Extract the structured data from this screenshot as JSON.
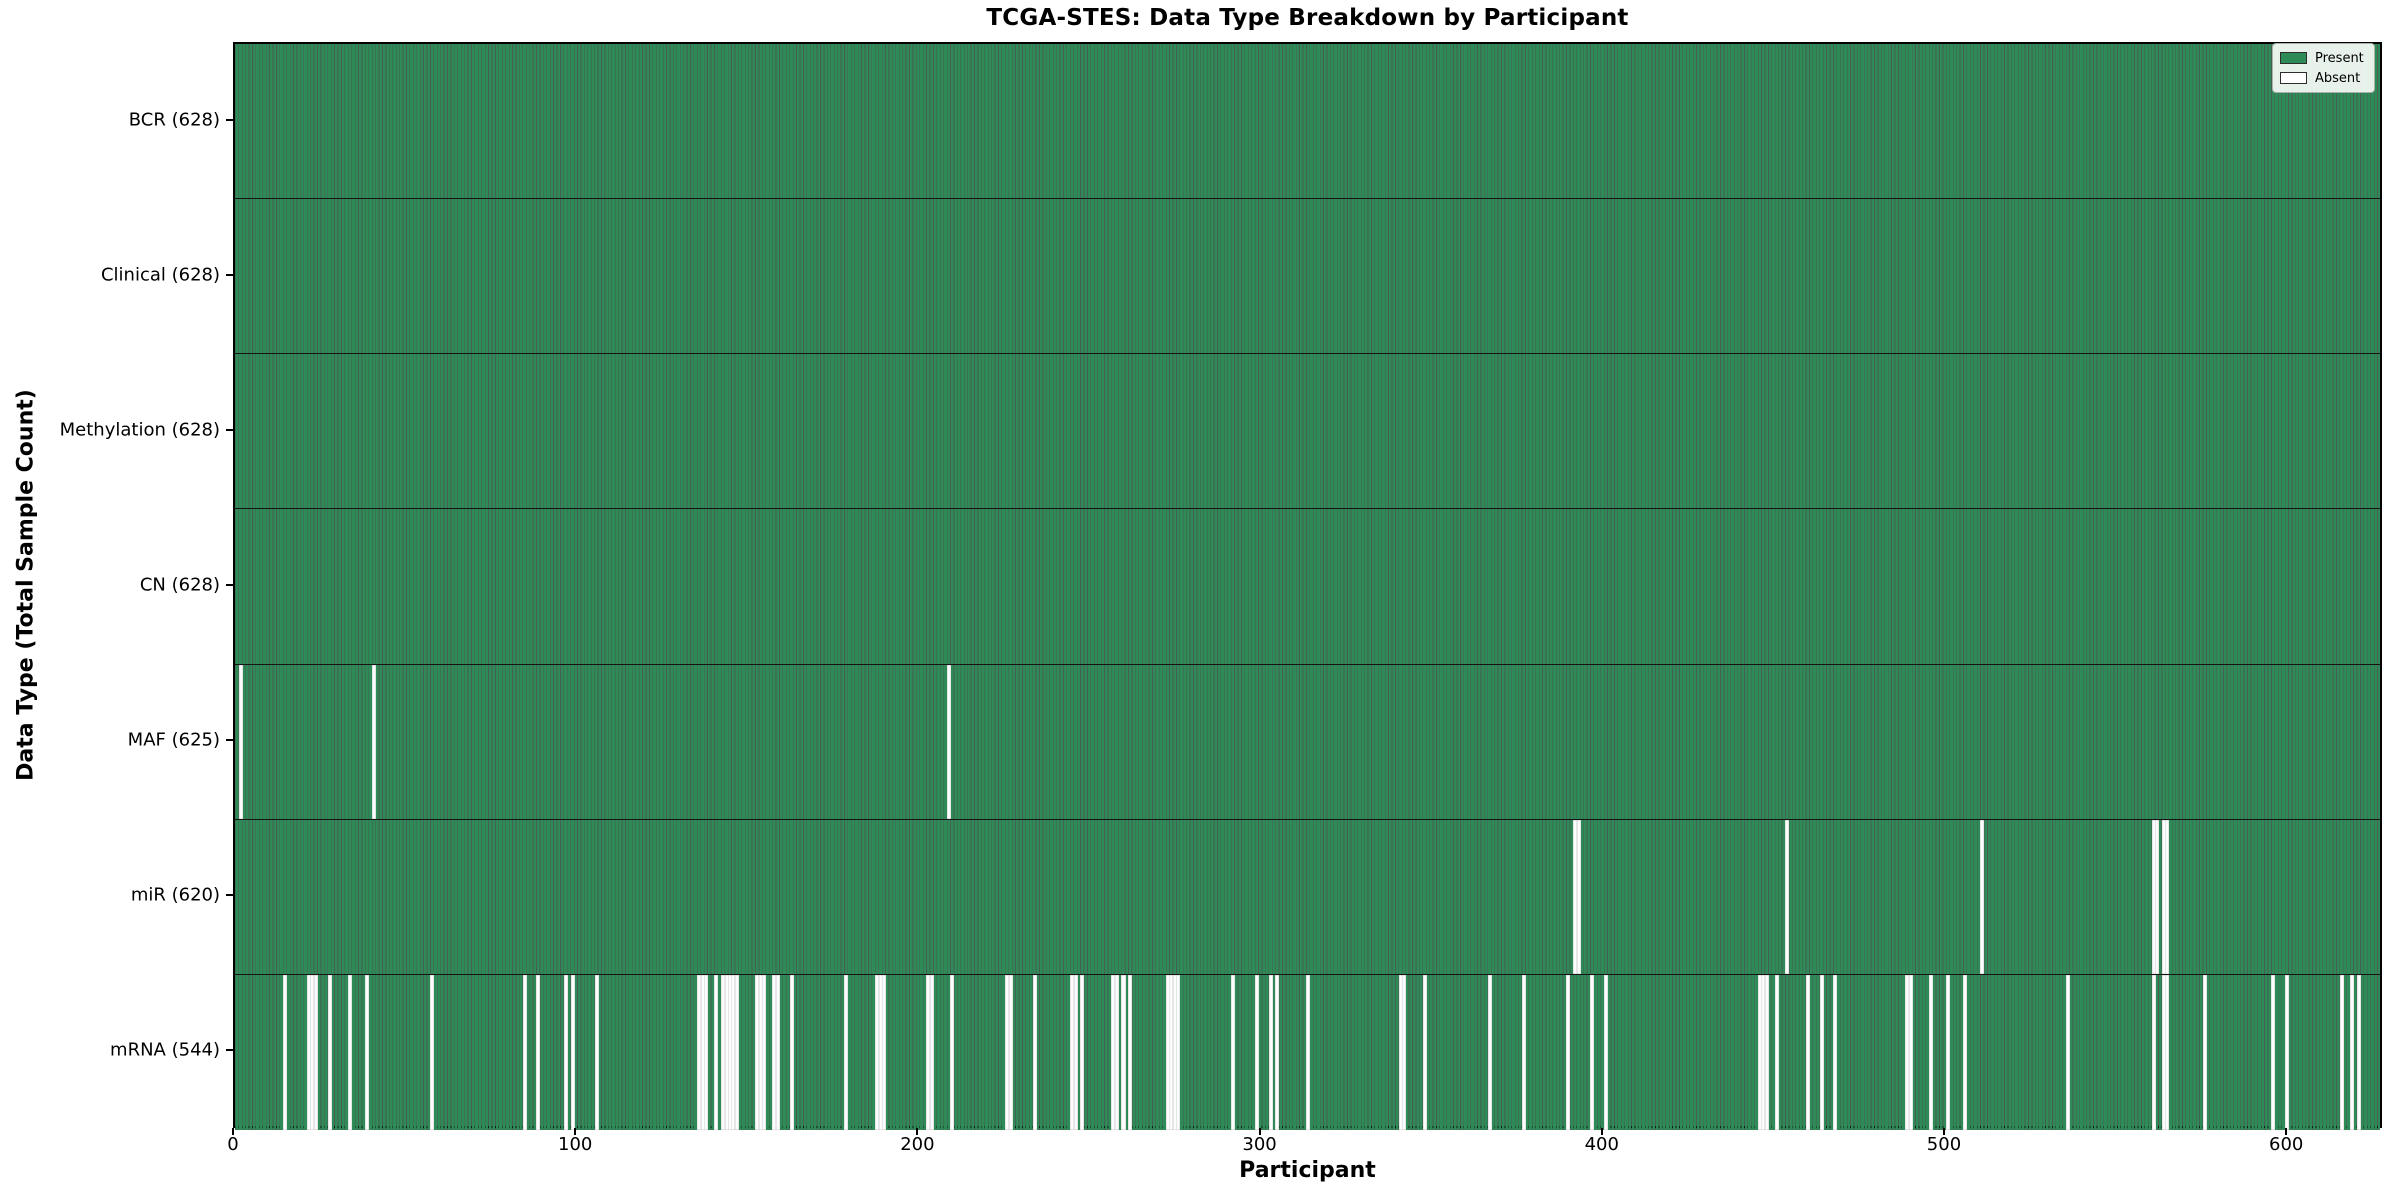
{
  "chart_data": {
    "type": "heatmap",
    "title": "TCGA-STES: Data Type Breakdown by Participant",
    "xlabel": "Participant",
    "ylabel": "Data Type (Total Sample Count)",
    "x_ticks": [
      0,
      100,
      200,
      300,
      400,
      500,
      600
    ],
    "x_range": [
      0,
      628
    ],
    "total_participants": 628,
    "grid": false,
    "legend": {
      "position": "upper right",
      "present_label": "Present",
      "absent_label": "Absent"
    },
    "colors": {
      "present": "#2e8b57",
      "absent": "#ffffff",
      "bar_edge": "#0a2819",
      "text": "#000000"
    },
    "rows": [
      {
        "label": "BCR (628)",
        "name": "BCR",
        "present_count": 628,
        "absent_participants": []
      },
      {
        "label": "Clinical (628)",
        "name": "Clinical",
        "present_count": 628,
        "absent_participants": []
      },
      {
        "label": "Methylation (628)",
        "name": "Methylation",
        "present_count": 628,
        "absent_participants": []
      },
      {
        "label": "CN (628)",
        "name": "CN",
        "present_count": 628,
        "absent_participants": []
      },
      {
        "label": "MAF (625)",
        "name": "MAF",
        "present_count": 625,
        "absent_participants": [
          1,
          40,
          208
        ]
      },
      {
        "label": "miR (620)",
        "name": "miR",
        "present_count": 620,
        "absent_participants": [
          391,
          392,
          453,
          510,
          560,
          561,
          563,
          564
        ]
      },
      {
        "label": "mRNA (544)",
        "name": "mRNA",
        "present_count": 544,
        "absent_participants": [
          14,
          21,
          22,
          23,
          27,
          33,
          38,
          57,
          84,
          88,
          96,
          98,
          105,
          135,
          136,
          137,
          140,
          142,
          143,
          144,
          145,
          146,
          152,
          153,
          154,
          157,
          158,
          162,
          178,
          187,
          188,
          189,
          202,
          203,
          209,
          225,
          226,
          233,
          244,
          245,
          247,
          256,
          257,
          259,
          261,
          272,
          273,
          274,
          275,
          291,
          298,
          302,
          304,
          313,
          340,
          341,
          347,
          366,
          376,
          389,
          396,
          400,
          445,
          446,
          447,
          450,
          459,
          463,
          467,
          488,
          489,
          495,
          500,
          505,
          535,
          560,
          563,
          564,
          575,
          595,
          599,
          615,
          618,
          620
        ]
      }
    ]
  }
}
